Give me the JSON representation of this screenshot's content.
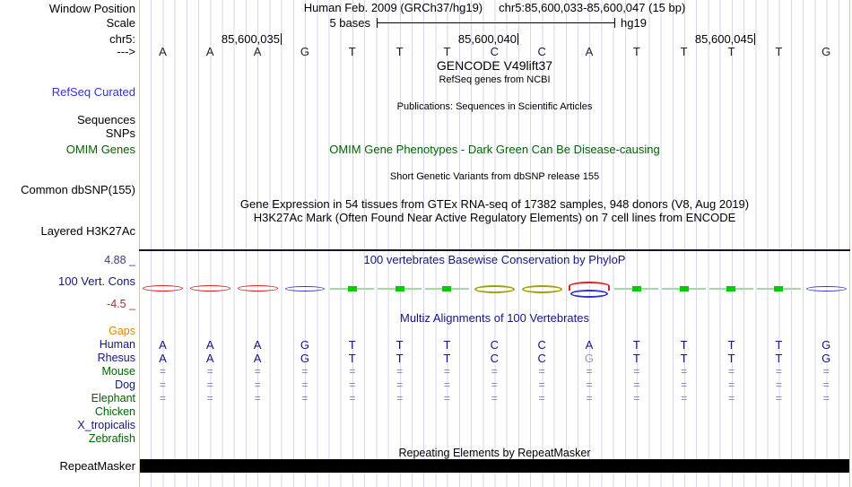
{
  "header": {
    "window_position_label": "Window Position",
    "assembly_title": "Human Feb. 2009 (GRCh37/hg19)",
    "range_title": "chr5:85,600,033-85,600,047 (15 bp)",
    "scale_label": "Scale",
    "scale_text": "5 bases",
    "scale_right_text": "hg19",
    "chrom_label": "chr5:",
    "strand_label": "--->",
    "coordinates": [
      "85,600,035",
      "85,600,040",
      "85,600,045"
    ]
  },
  "sequence": {
    "bases": [
      "A",
      "A",
      "A",
      "G",
      "T",
      "T",
      "T",
      "C",
      "C",
      "A",
      "T",
      "T",
      "T",
      "T",
      "G"
    ]
  },
  "tracks": {
    "gencode_title": "GENCODE V49lift37",
    "ncbi_refseq_title": "RefSeq genes from NCBI",
    "refseq_curated_label": "RefSeq Curated",
    "publications_title": "Publications: Sequences in Scientific Articles",
    "sequences_label": "Sequences",
    "snps_label": "SNPs",
    "omim_genes_label": "OMIM Genes",
    "omim_title": "OMIM Gene Phenotypes - Dark Green Can Be Disease-causing",
    "dbsnp_release_title": "Short Genetic Variants from dbSNP release 155",
    "common_dbsnp_label": "Common dbSNP(155)",
    "gtex_title": "Gene Expression in 54 tissues from GTEx RNA-seq of 17382 samples, 948 donors (V8, Aug 2019)",
    "h3k27ac_title": "H3K27Ac Mark (Often Found Near Active Regulatory Elements) on 7 cell lines from ENCODE",
    "layered_h3k27ac_label": "Layered H3K27Ac",
    "conservation": {
      "title": "100 vertebrates Basewise Conservation by PhyloP",
      "label": "100 Vert. Cons",
      "max_label": "4.88 _",
      "min_label": "-4.5 _",
      "marks": [
        "red",
        "red",
        "red",
        "blue",
        "green",
        "green",
        "green",
        "olive",
        "olive",
        "redblue",
        "green",
        "green",
        "green",
        "green",
        "blue"
      ]
    },
    "multiz": {
      "title": "Multiz Alignments of 100 Vertebrates",
      "rows": [
        {
          "label": "Gaps",
          "color": "orange",
          "cells": [
            "",
            "",
            "",
            "",
            "",
            "",
            "",
            "",
            "",
            "",
            "",
            "",
            "",
            "",
            ""
          ]
        },
        {
          "label": "Human",
          "color": "navy",
          "cells": [
            "A",
            "A",
            "A",
            "G",
            "T",
            "T",
            "T",
            "C",
            "C",
            "A",
            "T",
            "T",
            "T",
            "T",
            "G"
          ]
        },
        {
          "label": "Rhesus",
          "color": "navy",
          "cells": [
            "A",
            "A",
            "A",
            "G",
            "T",
            "T",
            "T",
            "C",
            "C",
            "G",
            "T",
            "T",
            "T",
            "T",
            "G"
          ],
          "muted": [
            9
          ]
        },
        {
          "label": "Mouse",
          "color": "green",
          "cells": [
            "=",
            "=",
            "=",
            "=",
            "=",
            "=",
            "=",
            "=",
            "=",
            "=",
            "=",
            "=",
            "=",
            "=",
            "="
          ]
        },
        {
          "label": "Dog",
          "color": "navy",
          "cells": [
            "=",
            "=",
            "=",
            "=",
            "=",
            "=",
            "=",
            "=",
            "=",
            "=",
            "=",
            "=",
            "=",
            "=",
            "="
          ]
        },
        {
          "label": "Elephant",
          "color": "green",
          "cells": [
            "=",
            "=",
            "=",
            "=",
            "=",
            "=",
            "=",
            "=",
            "=",
            "=",
            "=",
            "=",
            "=",
            "=",
            "="
          ]
        },
        {
          "label": "Chicken",
          "color": "green",
          "cells": [
            "",
            "",
            "",
            "",
            "",
            "",
            "",
            "",
            "",
            "",
            "",
            "",
            "",
            "",
            ""
          ]
        },
        {
          "label": "X_tropicalis",
          "color": "navy",
          "cells": [
            "",
            "",
            "",
            "",
            "",
            "",
            "",
            "",
            "",
            "",
            "",
            "",
            "",
            "",
            ""
          ]
        },
        {
          "label": "Zebrafish",
          "color": "green",
          "cells": [
            "",
            "",
            "",
            "",
            "",
            "",
            "",
            "",
            "",
            "",
            "",
            "",
            "",
            "",
            ""
          ]
        }
      ]
    },
    "repeat": {
      "title": "Repeating Elements by RepeatMasker",
      "label": "RepeatMasker"
    }
  },
  "colors": {
    "navy": "#151580",
    "link-blue": "#3333cc",
    "green": "#006400",
    "orange": "#e08800",
    "maroon": "#993333",
    "grid": "#d6d6f0",
    "pink": "#ffb0b0",
    "wiggle-red": "#e02020",
    "wiggle-blue": "#3030d0",
    "wiggle-olive": "#a0a000",
    "green-bright": "#00cc00",
    "green-light": "#a0dca0"
  }
}
